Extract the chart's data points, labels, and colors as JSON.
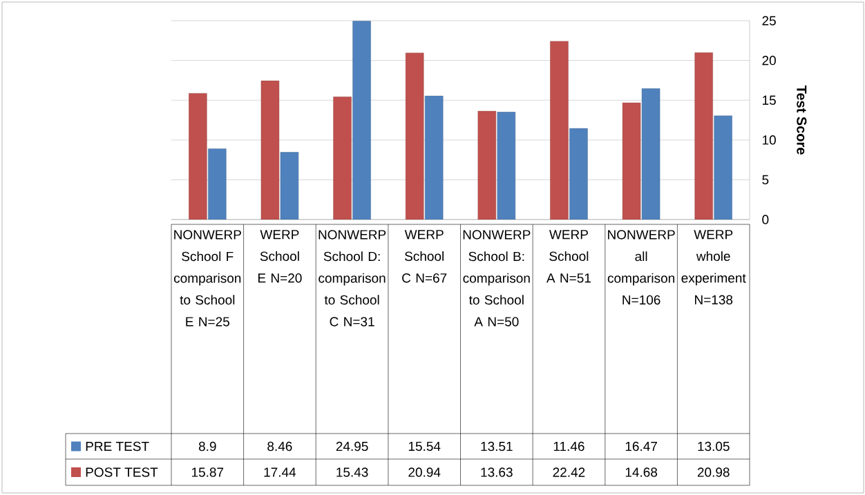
{
  "chart_data": {
    "type": "bar",
    "ylabel": "Test Score",
    "categories": [
      "NONWERP School F comparison to School E N=25",
      "WERP School E N=20",
      "NONWERP School D: comparison to School C N=31",
      "WERP School C N=67",
      "NONWERP School B: comparison to School A N=50",
      "WERP School A N=51",
      "NONWERP all comparison N=106",
      "WERP whole experiment N=138"
    ],
    "series": [
      {
        "name": "PRE TEST",
        "color": "#4f81bd",
        "values": [
          8.9,
          8.46,
          24.95,
          15.54,
          13.51,
          11.46,
          16.47,
          13.05
        ],
        "value_labels": [
          "8.9",
          "8.46",
          "24.95",
          "15.54",
          "13.51",
          "11.46",
          "16.47",
          "13.05"
        ]
      },
      {
        "name": "POST TEST",
        "color": "#c0504d",
        "values": [
          15.87,
          17.44,
          15.43,
          20.94,
          13.63,
          22.42,
          14.68,
          20.98
        ],
        "value_labels": [
          "15.87",
          "17.44",
          "15.43",
          "20.94",
          "13.63",
          "22.42",
          "14.68",
          "20.98"
        ]
      }
    ],
    "ylim": [
      0,
      25
    ],
    "yticks": [
      0,
      5,
      10,
      15,
      20,
      25
    ],
    "grid": "y",
    "legend": "bottom"
  }
}
